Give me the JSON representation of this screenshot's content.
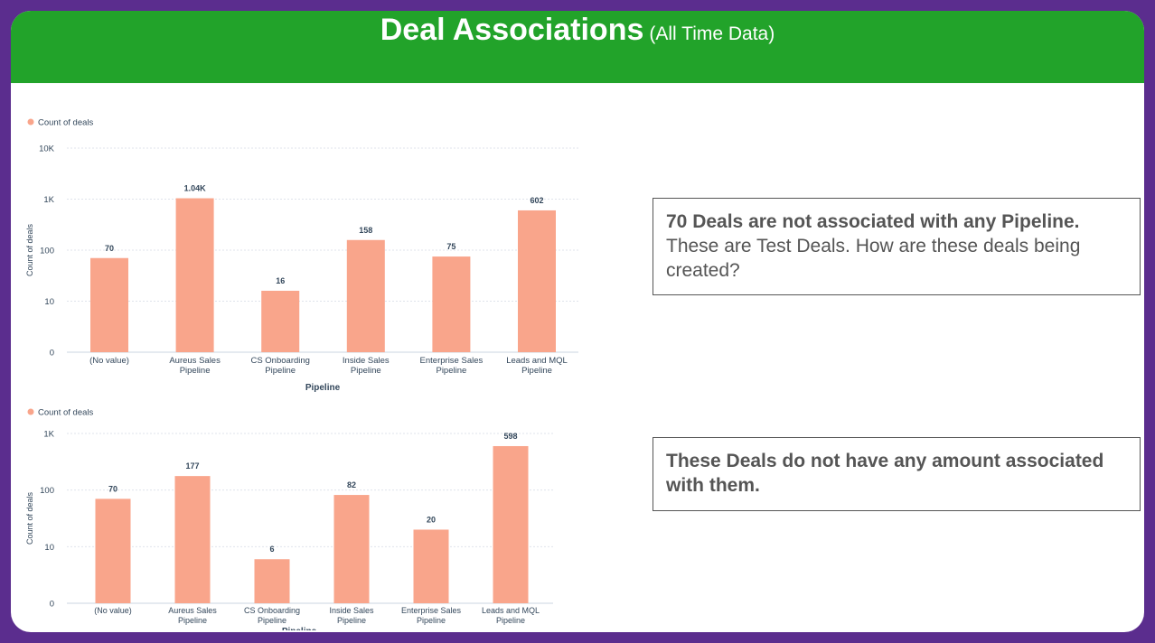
{
  "header": {
    "title": "Deal Associations",
    "subtitle": "(All Time Data)"
  },
  "colors": {
    "bar": "#f9a58b",
    "header": "#22a32a",
    "frame": "#5b2d8e"
  },
  "callouts": [
    {
      "bold": "70 Deals are not associated with any Pipeline.",
      "text": "These are Test Deals. How are these deals being created?"
    },
    {
      "bold": "These Deals do not have any amount associated with them.",
      "text": ""
    }
  ],
  "chart_data": [
    {
      "type": "bar",
      "scale": "log",
      "legend": "Count of deals",
      "legend_position": "top-left",
      "grid": true,
      "xlabel": "Pipeline",
      "ylabel": "Count of deals",
      "yticks": [
        "0",
        "10",
        "100",
        "1K",
        "10K"
      ],
      "categories": [
        [
          "(No value)"
        ],
        [
          "Aureus Sales",
          "Pipeline"
        ],
        [
          "CS Onboarding",
          "Pipeline"
        ],
        [
          "Inside Sales",
          "Pipeline"
        ],
        [
          "Enterprise Sales",
          "Pipeline"
        ],
        [
          "Leads and MQL",
          "Pipeline"
        ]
      ],
      "values": [
        70,
        1040,
        16,
        158,
        75,
        602
      ],
      "labels": [
        "70",
        "1.04K",
        "16",
        "158",
        "75",
        "602"
      ]
    },
    {
      "type": "bar",
      "scale": "log",
      "legend": "Count of deals",
      "legend_position": "top-left",
      "grid": true,
      "xlabel": "Pipeline",
      "ylabel": "Count of deals",
      "yticks": [
        "0",
        "10",
        "100",
        "1K"
      ],
      "categories": [
        [
          "(No value)"
        ],
        [
          "Aureus Sales",
          "Pipeline"
        ],
        [
          "CS Onboarding",
          "Pipeline"
        ],
        [
          "Inside Sales",
          "Pipeline"
        ],
        [
          "Enterprise Sales",
          "Pipeline"
        ],
        [
          "Leads and MQL",
          "Pipeline"
        ]
      ],
      "values": [
        70,
        177,
        6,
        82,
        20,
        598
      ],
      "labels": [
        "70",
        "177",
        "6",
        "82",
        "20",
        "598"
      ]
    }
  ]
}
